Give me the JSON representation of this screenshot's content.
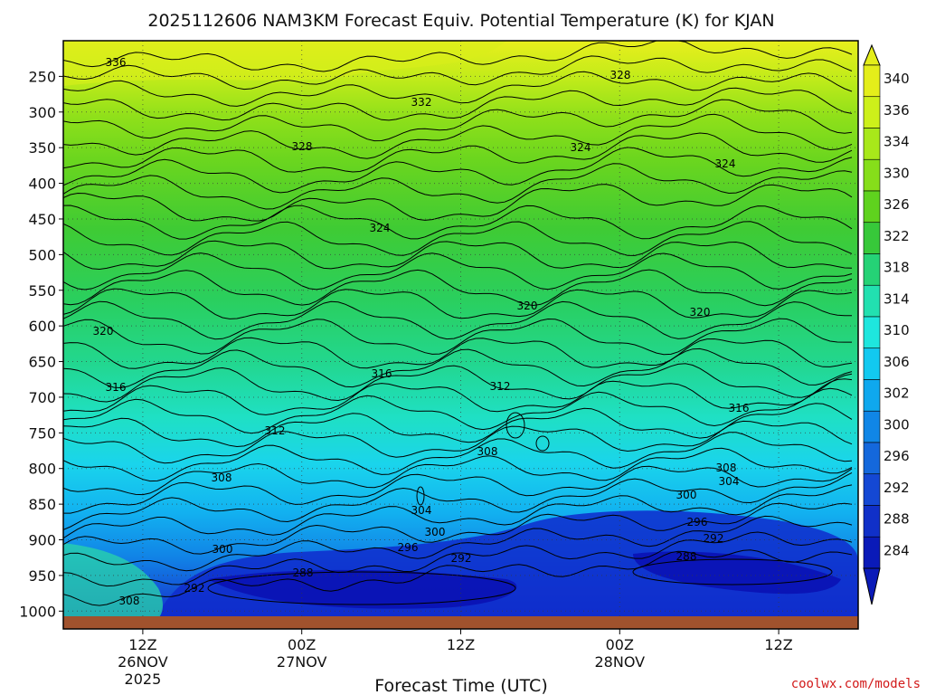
{
  "chart_data": {
    "type": "heatmap",
    "title": "2025112606 NAM3KM Forecast Equiv. Potential Temperature (K) for KJAN",
    "xlabel": "Forecast Time (UTC)",
    "ylabel": "",
    "credit": "coolwx.com/models",
    "pressure_ticks": [
      "250",
      "300",
      "350",
      "400",
      "450",
      "500",
      "550",
      "600",
      "650",
      "700",
      "750",
      "800",
      "850",
      "900",
      "950",
      "1000"
    ],
    "time_ticks": [
      {
        "hour": 12,
        "label": "12Z",
        "date": "26NOV",
        "year": "2025"
      },
      {
        "hour": 24,
        "label": "00Z",
        "date": "27NOV",
        "year": ""
      },
      {
        "hour": 36,
        "label": "12Z",
        "date": "",
        "year": ""
      },
      {
        "hour": 48,
        "label": "00Z",
        "date": "28NOV",
        "year": ""
      },
      {
        "hour": 60,
        "label": "12Z",
        "date": "",
        "year": ""
      }
    ],
    "colorbar_labels": [
      "340",
      "336",
      "334",
      "330",
      "326",
      "322",
      "318",
      "314",
      "310",
      "306",
      "302",
      "300",
      "296",
      "292",
      "288",
      "284"
    ],
    "colorbar_colors": [
      "#e4ee1a",
      "#cdf01a",
      "#a8e81a",
      "#86de1a",
      "#5fd21e",
      "#37c83a",
      "#25d276",
      "#22e0b0",
      "#1ee6de",
      "#12c9f0",
      "#0fa8ee",
      "#1086e6",
      "#1468dc",
      "#1448d4",
      "#1030c8",
      "#0a1ab8"
    ],
    "contour_labels": [
      "336",
      "332",
      "328",
      "328",
      "324",
      "324",
      "324",
      "320",
      "320",
      "320",
      "316",
      "316",
      "316",
      "312",
      "312",
      "308",
      "308",
      "308",
      "304",
      "304",
      "300",
      "300",
      "300",
      "296",
      "296",
      "292",
      "292",
      "292",
      "288",
      "288",
      "308"
    ],
    "ground_color": "#a0522d",
    "x_range_hours": [
      6,
      66
    ],
    "y_range_hpa": [
      200,
      1025
    ]
  }
}
